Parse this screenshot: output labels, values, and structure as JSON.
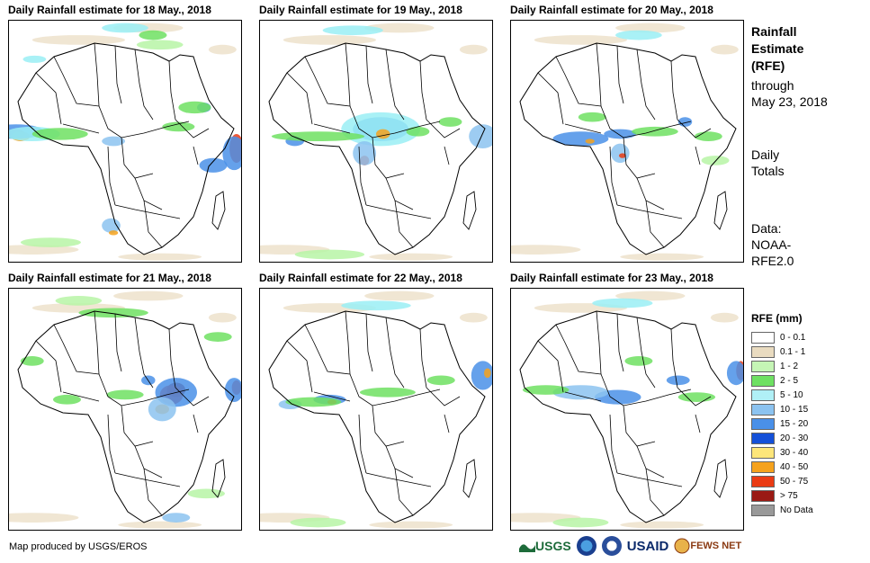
{
  "colors": {
    "green_light": "#b7f5a6",
    "green": "#6ee062",
    "cyan": "#9aeef4",
    "blue_light": "#8cc3f0",
    "blue": "#4a90e8",
    "blue_dark": "#1450d8",
    "yellow": "#fde67a",
    "orange": "#f5a21d",
    "red": "#ea3b14",
    "dark_red": "#9a1a14"
  },
  "panels": [
    {
      "title": "Daily Rainfall estimate for 18 May., 2018",
      "blobs": [
        [
          "red",
          0.02,
          0.47,
          0.05,
          0.02
        ],
        [
          "orange",
          0.05,
          0.48,
          0.04,
          0.02
        ],
        [
          "blue",
          0.03,
          0.46,
          0.12,
          0.03
        ],
        [
          "cyan",
          0.1,
          0.47,
          0.12,
          0.03
        ],
        [
          "green",
          0.22,
          0.47,
          0.12,
          0.025
        ],
        [
          "blue_light",
          0.45,
          0.5,
          0.05,
          0.02
        ],
        [
          "red",
          0.98,
          0.53,
          0.03,
          0.06
        ],
        [
          "blue",
          0.97,
          0.55,
          0.05,
          0.07
        ],
        [
          "blue",
          0.88,
          0.6,
          0.06,
          0.03
        ],
        [
          "cyan",
          0.5,
          0.03,
          0.1,
          0.02
        ],
        [
          "green",
          0.62,
          0.06,
          0.06,
          0.02
        ],
        [
          "blue",
          0.84,
          0.36,
          0.03,
          0.02
        ],
        [
          "green",
          0.8,
          0.36,
          0.07,
          0.025
        ],
        [
          "blue_light",
          0.44,
          0.85,
          0.04,
          0.03
        ],
        [
          "orange",
          0.45,
          0.88,
          0.02,
          0.01
        ],
        [
          "green_light",
          0.18,
          0.92,
          0.13,
          0.02
        ],
        [
          "green_light",
          0.65,
          0.1,
          0.1,
          0.02
        ],
        [
          "green",
          0.73,
          0.44,
          0.07,
          0.02
        ],
        [
          "cyan",
          0.11,
          0.16,
          0.05,
          0.015
        ]
      ]
    },
    {
      "title": "Daily Rainfall estimate for 19 May., 2018",
      "blobs": [
        [
          "blue",
          0.52,
          0.45,
          0.12,
          0.05
        ],
        [
          "cyan",
          0.52,
          0.45,
          0.17,
          0.07
        ],
        [
          "orange",
          0.53,
          0.47,
          0.03,
          0.02
        ],
        [
          "red",
          0.45,
          0.58,
          0.02,
          0.02
        ],
        [
          "blue_light",
          0.45,
          0.55,
          0.05,
          0.05
        ],
        [
          "blue",
          0.15,
          0.5,
          0.04,
          0.02
        ],
        [
          "green",
          0.25,
          0.48,
          0.2,
          0.02
        ],
        [
          "blue_light",
          0.96,
          0.48,
          0.06,
          0.05
        ],
        [
          "cyan",
          0.4,
          0.04,
          0.13,
          0.02
        ],
        [
          "green",
          0.82,
          0.42,
          0.05,
          0.02
        ],
        [
          "green_light",
          0.3,
          0.97,
          0.15,
          0.02
        ],
        [
          "green",
          0.68,
          0.46,
          0.05,
          0.02
        ]
      ]
    },
    {
      "title": "Daily Rainfall estimate for 20 May., 2018",
      "blobs": [
        [
          "blue",
          0.3,
          0.49,
          0.12,
          0.03
        ],
        [
          "orange",
          0.34,
          0.5,
          0.02,
          0.01
        ],
        [
          "blue",
          0.47,
          0.47,
          0.07,
          0.02
        ],
        [
          "blue_light",
          0.47,
          0.55,
          0.04,
          0.04
        ],
        [
          "red",
          0.48,
          0.56,
          0.015,
          0.01
        ],
        [
          "green",
          0.62,
          0.46,
          0.1,
          0.02
        ],
        [
          "green",
          0.85,
          0.48,
          0.06,
          0.02
        ],
        [
          "cyan",
          0.55,
          0.06,
          0.1,
          0.02
        ],
        [
          "blue",
          0.75,
          0.42,
          0.03,
          0.02
        ],
        [
          "green",
          0.35,
          0.4,
          0.06,
          0.02
        ],
        [
          "green_light",
          0.88,
          0.58,
          0.06,
          0.02
        ]
      ]
    },
    {
      "title": "Daily Rainfall estimate for 21 May., 2018",
      "blobs": [
        [
          "dark_red",
          0.72,
          0.42,
          0.04,
          0.03
        ],
        [
          "red",
          0.7,
          0.44,
          0.05,
          0.04
        ],
        [
          "blue",
          0.72,
          0.43,
          0.09,
          0.06
        ],
        [
          "orange",
          0.66,
          0.5,
          0.03,
          0.02
        ],
        [
          "blue_light",
          0.66,
          0.5,
          0.06,
          0.05
        ],
        [
          "red",
          0.98,
          0.41,
          0.02,
          0.03
        ],
        [
          "blue",
          0.97,
          0.42,
          0.04,
          0.05
        ],
        [
          "green",
          0.5,
          0.44,
          0.08,
          0.02
        ],
        [
          "green",
          0.25,
          0.46,
          0.06,
          0.02
        ],
        [
          "blue",
          0.6,
          0.38,
          0.03,
          0.02
        ],
        [
          "green",
          0.45,
          0.1,
          0.15,
          0.02
        ],
        [
          "green_light",
          0.3,
          0.05,
          0.1,
          0.02
        ],
        [
          "blue_light",
          0.72,
          0.95,
          0.06,
          0.02
        ],
        [
          "green_light",
          0.85,
          0.85,
          0.08,
          0.02
        ],
        [
          "green",
          0.1,
          0.3,
          0.05,
          0.02
        ],
        [
          "green",
          0.9,
          0.2,
          0.06,
          0.02
        ]
      ]
    },
    {
      "title": "Daily Rainfall estimate for 22 May., 2018",
      "blobs": [
        [
          "blue",
          0.3,
          0.46,
          0.07,
          0.02
        ],
        [
          "red",
          0.31,
          0.47,
          0.02,
          0.01
        ],
        [
          "blue_light",
          0.13,
          0.48,
          0.05,
          0.02
        ],
        [
          "green",
          0.23,
          0.47,
          0.12,
          0.02
        ],
        [
          "blue",
          0.96,
          0.36,
          0.05,
          0.06
        ],
        [
          "orange",
          0.98,
          0.35,
          0.015,
          0.02
        ],
        [
          "green",
          0.55,
          0.43,
          0.12,
          0.02
        ],
        [
          "cyan",
          0.5,
          0.07,
          0.15,
          0.02
        ],
        [
          "green",
          0.78,
          0.38,
          0.06,
          0.02
        ],
        [
          "green_light",
          0.25,
          0.97,
          0.12,
          0.02
        ]
      ]
    },
    {
      "title": "Daily Rainfall estimate for 23 May., 2018",
      "blobs": [
        [
          "blue",
          0.46,
          0.45,
          0.1,
          0.03
        ],
        [
          "blue_light",
          0.3,
          0.43,
          0.12,
          0.03
        ],
        [
          "green",
          0.15,
          0.42,
          0.1,
          0.02
        ],
        [
          "red",
          0.99,
          0.34,
          0.02,
          0.04
        ],
        [
          "blue",
          0.97,
          0.35,
          0.04,
          0.05
        ],
        [
          "blue",
          0.72,
          0.38,
          0.05,
          0.02
        ],
        [
          "green",
          0.55,
          0.3,
          0.06,
          0.02
        ],
        [
          "cyan",
          0.48,
          0.06,
          0.13,
          0.02
        ],
        [
          "green",
          0.8,
          0.45,
          0.08,
          0.02
        ],
        [
          "green_light",
          0.3,
          0.97,
          0.12,
          0.02
        ]
      ]
    }
  ],
  "side": {
    "title_lines": [
      "Rainfall",
      "Estimate",
      "(RFE)"
    ],
    "through": "through",
    "date": "May 23, 2018",
    "daily": "Daily",
    "totals": "Totals",
    "data_label": "Data:",
    "data_src1": "NOAA-",
    "data_src2": "RFE2.0"
  },
  "legend": {
    "title": "RFE (mm)",
    "items": [
      {
        "label": "0 - 0.1",
        "color": "#ffffff"
      },
      {
        "label": "0.1 - 1",
        "color": "#e9dbc0"
      },
      {
        "label": "1 - 2",
        "color": "#c5f5b5"
      },
      {
        "label": "2 - 5",
        "color": "#6ee062"
      },
      {
        "label": "5 - 10",
        "color": "#b0f0f6"
      },
      {
        "label": "10 - 15",
        "color": "#8cc3f0"
      },
      {
        "label": "15 - 20",
        "color": "#4a90e8"
      },
      {
        "label": "20 - 30",
        "color": "#1450d8"
      },
      {
        "label": "30 - 40",
        "color": "#fde67a"
      },
      {
        "label": "40 - 50",
        "color": "#f5a21d"
      },
      {
        "label": "50 - 75",
        "color": "#ea3b14"
      },
      {
        "label": "> 75",
        "color": "#9a1a14"
      },
      {
        "label": "No Data",
        "color": "#999999"
      }
    ]
  },
  "credit": "Map produced by USGS/EROS",
  "logos": {
    "usgs": "USGS",
    "usaid": "USAID",
    "fews": "FEWS NET"
  }
}
